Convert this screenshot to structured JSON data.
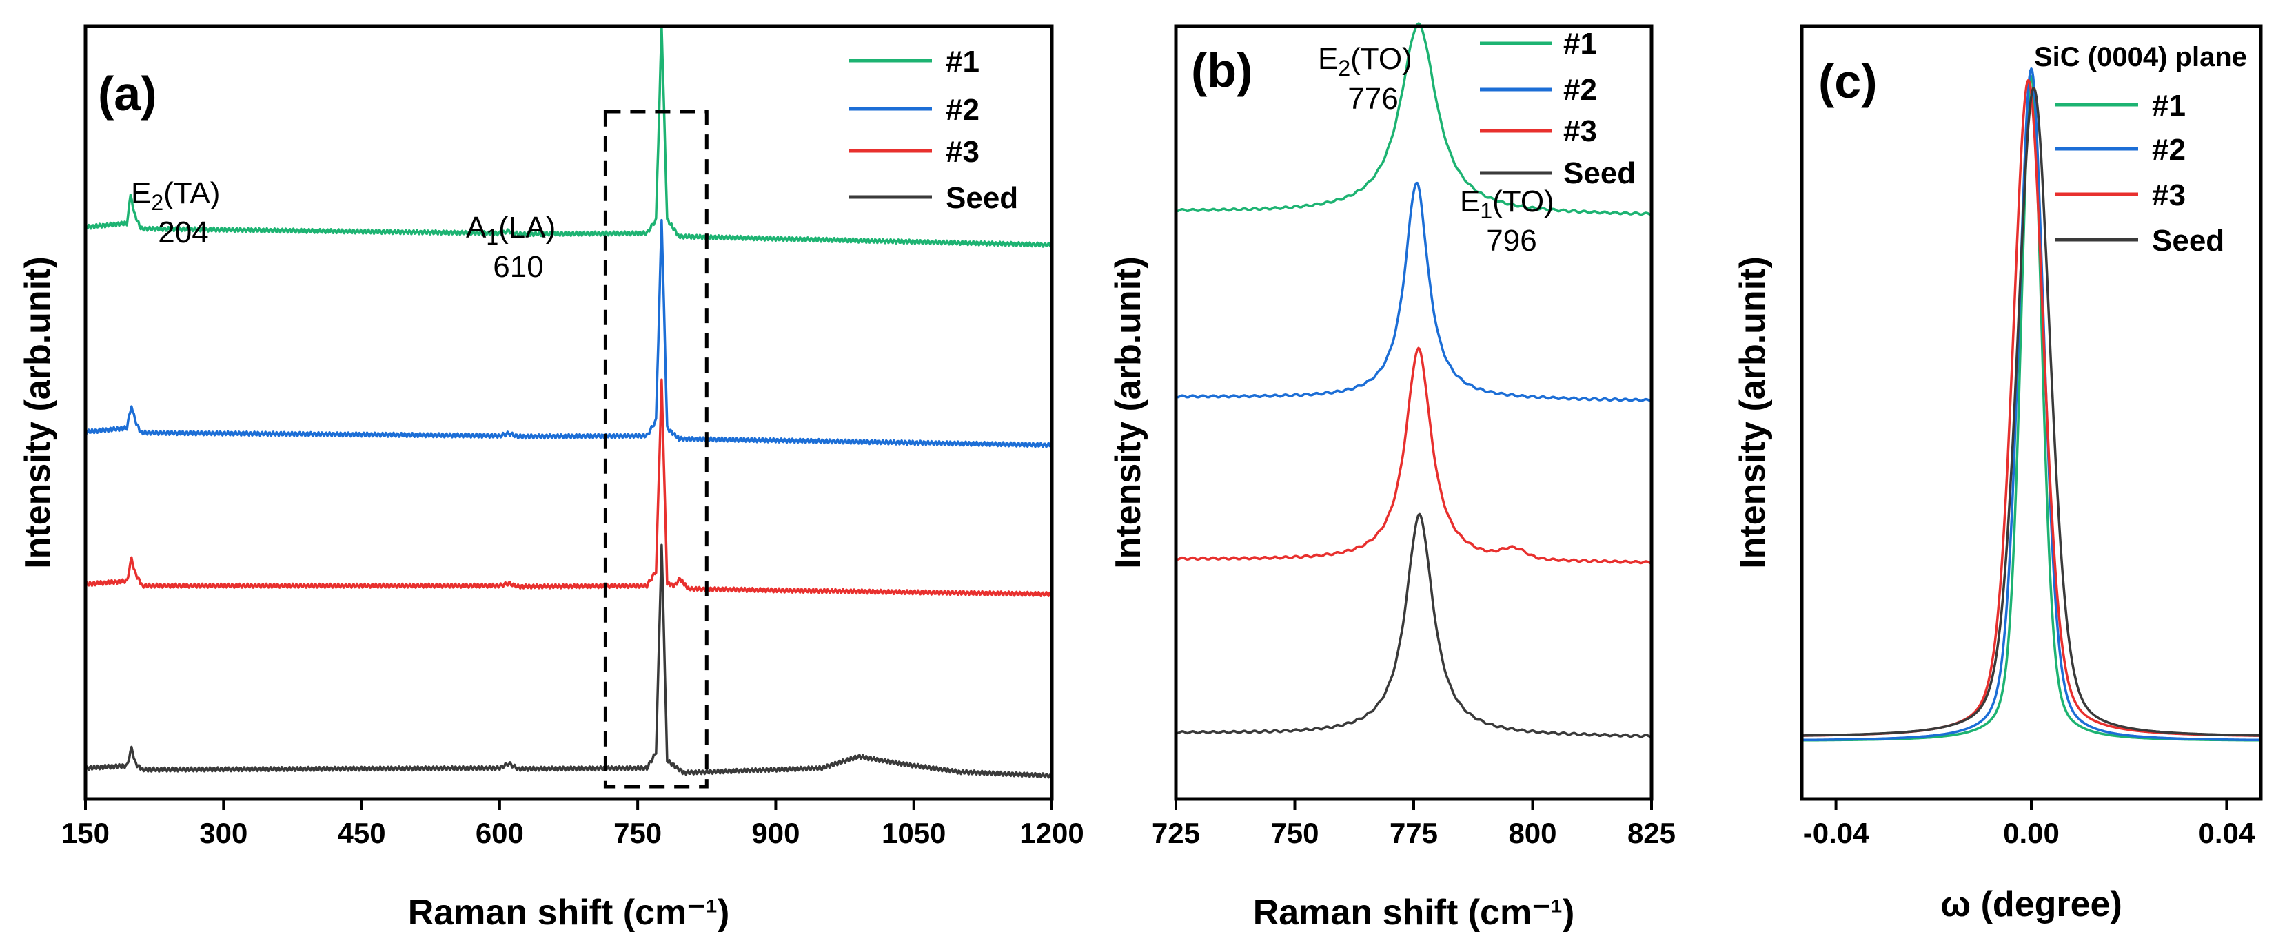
{
  "colors": {
    "s1": "#1db372",
    "s2": "#1c6ed6",
    "s3": "#e8302e",
    "seed": "#3a3a3a"
  },
  "chart_data": [
    {
      "panel": "(a)",
      "type": "line",
      "xlabel": "Raman shift (cm⁻¹)",
      "ylabel": "Intensity (arb.unit)",
      "xlim": [
        150,
        1200
      ],
      "xticks": [
        "150",
        "300",
        "450",
        "600",
        "750",
        "900",
        "1050",
        "1200"
      ],
      "y_ticks_labeled": false,
      "legend": [
        "#1",
        "#2",
        "#3",
        "Seed"
      ],
      "annotations": [
        {
          "mode": "E",
          "sub": "2",
          "paren": "(TA)",
          "value": "204"
        },
        {
          "mode": "A",
          "sub": "1",
          "paren": "(LA)",
          "value": "610"
        }
      ],
      "highlight_box_x": [
        715,
        825
      ],
      "series": [
        {
          "name": "#1",
          "color_key": "s1",
          "baseline": 0.72,
          "points": [
            [
              150,
              0.74
            ],
            [
              195,
              0.745
            ],
            [
              199,
              0.78
            ],
            [
              204,
              0.755
            ],
            [
              210,
              0.738
            ],
            [
              400,
              0.735
            ],
            [
              600,
              0.732
            ],
            [
              610,
              0.735
            ],
            [
              620,
              0.731
            ],
            [
              760,
              0.732
            ],
            [
              770,
              0.75
            ],
            [
              776,
              1.0
            ],
            [
              782,
              0.75
            ],
            [
              795,
              0.728
            ],
            [
              900,
              0.725
            ],
            [
              1200,
              0.717
            ]
          ]
        },
        {
          "name": "#2",
          "color_key": "s2",
          "baseline": 0.47,
          "points": [
            [
              150,
              0.475
            ],
            [
              195,
              0.48
            ],
            [
              200,
              0.51
            ],
            [
              204,
              0.49
            ],
            [
              210,
              0.474
            ],
            [
              600,
              0.47
            ],
            [
              610,
              0.473
            ],
            [
              620,
              0.469
            ],
            [
              760,
              0.47
            ],
            [
              770,
              0.49
            ],
            [
              776,
              0.75
            ],
            [
              782,
              0.48
            ],
            [
              795,
              0.466
            ],
            [
              900,
              0.464
            ],
            [
              1200,
              0.458
            ]
          ]
        },
        {
          "name": "#3",
          "color_key": "s3",
          "baseline": 0.28,
          "points": [
            [
              150,
              0.278
            ],
            [
              195,
              0.282
            ],
            [
              200,
              0.31
            ],
            [
              205,
              0.29
            ],
            [
              212,
              0.276
            ],
            [
              600,
              0.276
            ],
            [
              610,
              0.279
            ],
            [
              620,
              0.275
            ],
            [
              760,
              0.276
            ],
            [
              770,
              0.295
            ],
            [
              776,
              0.54
            ],
            [
              782,
              0.28
            ],
            [
              790,
              0.276
            ],
            [
              796,
              0.285
            ],
            [
              805,
              0.272
            ],
            [
              900,
              0.27
            ],
            [
              1200,
              0.265
            ]
          ]
        },
        {
          "name": "Seed",
          "color_key": "seed",
          "baseline": 0.03,
          "points": [
            [
              150,
              0.04
            ],
            [
              195,
              0.043
            ],
            [
              200,
              0.065
            ],
            [
              205,
              0.045
            ],
            [
              212,
              0.038
            ],
            [
              600,
              0.04
            ],
            [
              610,
              0.046
            ],
            [
              620,
              0.039
            ],
            [
              760,
              0.04
            ],
            [
              770,
              0.06
            ],
            [
              776,
              0.33
            ],
            [
              782,
              0.05
            ],
            [
              800,
              0.034
            ],
            [
              950,
              0.04
            ],
            [
              990,
              0.055
            ],
            [
              1040,
              0.045
            ],
            [
              1100,
              0.035
            ],
            [
              1200,
              0.03
            ]
          ]
        }
      ]
    },
    {
      "panel": "(b)",
      "type": "line",
      "xlabel": "Raman shift (cm⁻¹)",
      "ylabel": "Intensity (arb.unit)",
      "xlim": [
        725,
        825
      ],
      "xticks": [
        "725",
        "750",
        "775",
        "800",
        "825"
      ],
      "y_ticks_labeled": false,
      "legend": [
        "#1",
        "#2",
        "#3",
        "Seed"
      ],
      "annotations": [
        {
          "mode": "E",
          "sub": "2",
          "paren": "(TO)",
          "value": "776"
        },
        {
          "mode": "E",
          "sub": "1",
          "paren": "(TO)",
          "value": "796"
        }
      ],
      "series": [
        {
          "name": "#1",
          "color_key": "s1",
          "peak_x": 776,
          "peak_height": 0.245,
          "width": 4.6,
          "baseline_left": 0.76,
          "baseline_right": 0.755
        },
        {
          "name": "#2",
          "color_key": "s2",
          "peak_x": 775.6,
          "peak_height": 0.28,
          "width": 3.0,
          "baseline_left": 0.52,
          "baseline_right": 0.515
        },
        {
          "name": "#3",
          "color_key": "s3",
          "peak_x": 776,
          "peak_height": 0.275,
          "width": 3.3,
          "baseline_left": 0.31,
          "baseline_right": 0.305,
          "shoulder_x": 796,
          "shoulder_height": 0.012
        },
        {
          "name": "Seed",
          "color_key": "seed",
          "peak_x": 776.2,
          "peak_height": 0.285,
          "width": 3.5,
          "baseline_left": 0.085,
          "baseline_right": 0.08
        }
      ]
    },
    {
      "panel": "(c)",
      "type": "line",
      "title": "SiC (0004) plane",
      "xlabel": "ω (degree)",
      "ylabel": "Intensity (arb.unit)",
      "xlim": [
        -0.047,
        0.047
      ],
      "xticks": [
        "-0.04",
        "0.00",
        "0.04"
      ],
      "y_ticks_labeled": false,
      "legend": [
        "#1",
        "#2",
        "#3",
        "Seed"
      ],
      "series": [
        {
          "name": "#1",
          "color_key": "s1",
          "center": 0.0,
          "fwhm": 0.0052,
          "peak": 0.86,
          "baseline": 0.075
        },
        {
          "name": "#2",
          "color_key": "s2",
          "center": 0.0,
          "fwhm": 0.0062,
          "peak": 0.87,
          "baseline": 0.075
        },
        {
          "name": "#3",
          "color_key": "s3",
          "center": -0.0006,
          "fwhm": 0.0075,
          "peak": 0.85,
          "baseline": 0.08
        },
        {
          "name": "Seed",
          "color_key": "seed",
          "center": 0.0005,
          "fwhm": 0.008,
          "peak": 0.84,
          "baseline": 0.08
        }
      ]
    }
  ]
}
